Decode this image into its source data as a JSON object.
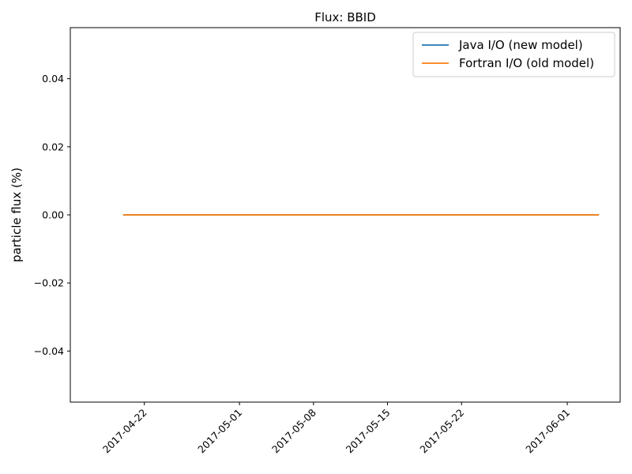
{
  "chart_data": {
    "type": "line",
    "title": "Flux: BBID",
    "xlabel": "",
    "ylabel": "particle flux (%)",
    "x_type": "date",
    "xlim": [
      "2017-04-15",
      "2017-06-06"
    ],
    "ylim": [
      -0.055,
      0.055
    ],
    "x_ticks": [
      "2017-04-22",
      "2017-05-01",
      "2017-05-08",
      "2017-05-15",
      "2017-05-22",
      "2017-06-01"
    ],
    "y_ticks": [
      0.04,
      0.02,
      0.0,
      -0.02,
      -0.04
    ],
    "y_tick_labels": [
      "0.04",
      "0.02",
      "0.00",
      "−0.02",
      "−0.04"
    ],
    "grid": false,
    "legend_position": "top-right",
    "series": [
      {
        "name": "Java I/O (new model)",
        "color": "#1f77b4",
        "x": [
          "2017-04-20",
          "2017-06-04"
        ],
        "y": [
          0.0,
          0.0
        ]
      },
      {
        "name": "Fortran I/O (old model)",
        "color": "#ff7f0e",
        "x": [
          "2017-04-20",
          "2017-06-04"
        ],
        "y": [
          0.0,
          0.0
        ]
      }
    ]
  }
}
